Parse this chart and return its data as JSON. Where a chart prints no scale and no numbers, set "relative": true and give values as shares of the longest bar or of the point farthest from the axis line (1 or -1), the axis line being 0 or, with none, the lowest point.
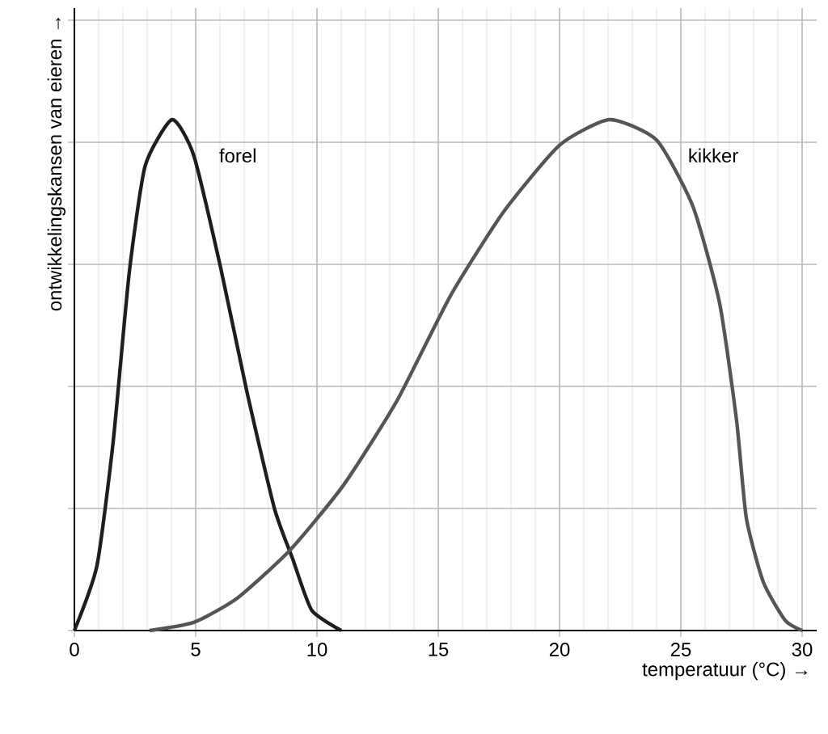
{
  "chart_data": {
    "type": "line",
    "relative": true,
    "xlabel": "temperatuur (°C) →",
    "ylabel": "ontwikkelingskansen van eieren →",
    "xlim": [
      0,
      30.6
    ],
    "xticks": [
      0,
      5,
      10,
      15,
      20,
      25,
      30
    ],
    "grid": true,
    "series": [
      {
        "name": "forel",
        "color": "#1e1e1e",
        "x": [
          0,
          0.93,
          1.6,
          2.26,
          2.92,
          4.03,
          4.92,
          6.03,
          7.1,
          8.24,
          9.0,
          9.78,
          11.0
        ],
        "values": [
          0,
          0.127,
          0.37,
          0.7,
          0.91,
          1.0,
          0.93,
          0.71,
          0.47,
          0.24,
          0.14,
          0.04,
          0
        ]
      },
      {
        "name": "kikker",
        "color": "#555555",
        "x": [
          3.1,
          4.92,
          6.7,
          8.9,
          11.1,
          13.3,
          15.5,
          17.7,
          20.0,
          22.06,
          24.0,
          25.5,
          26.6,
          27.3,
          27.7,
          28.4,
          29.3,
          30.0
        ],
        "values": [
          0,
          0.016,
          0.063,
          0.158,
          0.285,
          0.45,
          0.655,
          0.82,
          0.95,
          1.0,
          0.96,
          0.83,
          0.64,
          0.41,
          0.22,
          0.095,
          0.02,
          0
        ]
      }
    ]
  }
}
